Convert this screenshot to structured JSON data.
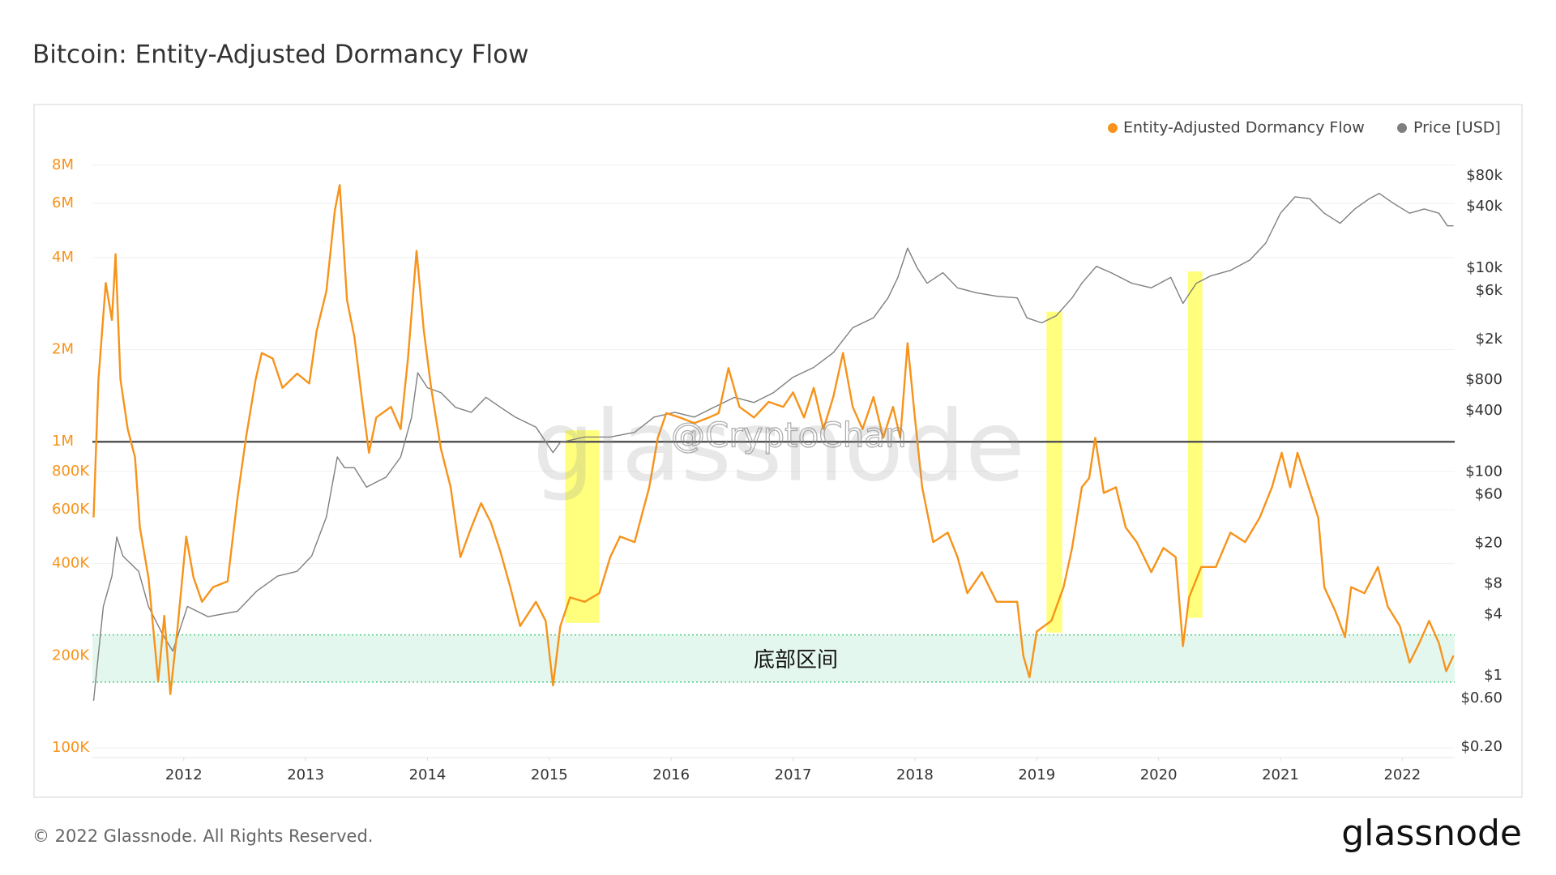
{
  "chart_data": {
    "type": "line",
    "title": "Bitcoin: Entity-Adjusted Dormancy Flow",
    "footer": "© 2022 Glassnode. All Rights Reserved.",
    "logo": "glassnode",
    "watermarks": [
      "glassnode",
      "@CryptoChan"
    ],
    "xlim": [
      2011.25,
      2022.43
    ],
    "xticks": [
      2012,
      2013,
      2014,
      2015,
      2016,
      2017,
      2018,
      2019,
      2020,
      2021,
      2022
    ],
    "log_scale": true,
    "grid": true,
    "legend": "top-right",
    "ylim": [
      93000,
      8400000
    ],
    "yticks": [
      {
        "value": 100000,
        "label": "100K"
      },
      {
        "value": 200000,
        "label": "200K"
      },
      {
        "value": 400000,
        "label": "400K"
      },
      {
        "value": 600000,
        "label": "600K"
      },
      {
        "value": 800000,
        "label": "800K"
      },
      {
        "value": 1000000,
        "label": "1M"
      },
      {
        "value": 2000000,
        "label": "2M"
      },
      {
        "value": 4000000,
        "label": "4M"
      },
      {
        "value": 6000000,
        "label": "6M"
      },
      {
        "value": 8000000,
        "label": "8M"
      }
    ],
    "y2lim": [
      0.158,
      118000
    ],
    "y2ticks": [
      {
        "value": 0.2,
        "label": "$0.20"
      },
      {
        "value": 0.6,
        "label": "$0.60"
      },
      {
        "value": 1,
        "label": "$1"
      },
      {
        "value": 4,
        "label": "$4"
      },
      {
        "value": 8,
        "label": "$8"
      },
      {
        "value": 20,
        "label": "$20"
      },
      {
        "value": 60,
        "label": "$60"
      },
      {
        "value": 100,
        "label": "$100"
      },
      {
        "value": 400,
        "label": "$400"
      },
      {
        "value": 800,
        "label": "$800"
      },
      {
        "value": 2000,
        "label": "$2k"
      },
      {
        "value": 6000,
        "label": "$6k"
      },
      {
        "value": 10000,
        "label": "$10k"
      },
      {
        "value": 40000,
        "label": "$40k"
      },
      {
        "value": 80000,
        "label": "$80k"
      }
    ],
    "reference_line": {
      "value": 1000000,
      "color": "#555555"
    },
    "bottom_zone": {
      "label": "底部区间",
      "ylim": [
        164000,
        234000
      ],
      "color": "#e4f7ee",
      "border_color": "#59c98a"
    },
    "highlights": [
      {
        "x": [
          2015.13,
          2015.41
        ],
        "y": [
          256000,
          1090000
        ]
      },
      {
        "x": [
          2019.08,
          2019.21
        ],
        "y": [
          238000,
          2660000
        ]
      },
      {
        "x": [
          2020.24,
          2020.36
        ],
        "y": [
          266000,
          3600000
        ]
      }
    ],
    "highlight_color": "#ffff66",
    "series": [
      {
        "name": "Entity-Adjusted Dormancy Flow",
        "color": "#f7931a",
        "axis": "y",
        "x": [
          2011.26,
          2011.3,
          2011.36,
          2011.41,
          2011.44,
          2011.48,
          2011.54,
          2011.6,
          2011.64,
          2011.71,
          2011.79,
          2011.84,
          2011.89,
          2011.95,
          2012.02,
          2012.08,
          2012.15,
          2012.24,
          2012.36,
          2012.44,
          2012.51,
          2012.59,
          2012.64,
          2012.73,
          2012.81,
          2012.93,
          2013.03,
          2013.09,
          2013.17,
          2013.24,
          2013.28,
          2013.34,
          2013.4,
          2013.46,
          2013.52,
          2013.58,
          2013.7,
          2013.78,
          2013.84,
          2013.91,
          2013.97,
          2014.03,
          2014.11,
          2014.19,
          2014.27,
          2014.36,
          2014.44,
          2014.52,
          2014.6,
          2014.68,
          2014.76,
          2014.89,
          2014.97,
          2015.03,
          2015.09,
          2015.17,
          2015.29,
          2015.41,
          2015.5,
          2015.58,
          2015.7,
          2015.82,
          2015.89,
          2015.96,
          2016.07,
          2016.19,
          2016.31,
          2016.39,
          2016.47,
          2016.56,
          2016.68,
          2016.8,
          2016.92,
          2017.0,
          2017.09,
          2017.17,
          2017.25,
          2017.33,
          2017.41,
          2017.49,
          2017.57,
          2017.66,
          2017.74,
          2017.82,
          2017.88,
          2017.94,
          2018.0,
          2018.06,
          2018.15,
          2018.27,
          2018.35,
          2018.43,
          2018.55,
          2018.67,
          2018.84,
          2018.89,
          2018.94,
          2019.0,
          2019.12,
          2019.22,
          2019.29,
          2019.37,
          2019.43,
          2019.48,
          2019.55,
          2019.65,
          2019.73,
          2019.82,
          2019.94,
          2020.04,
          2020.14,
          2020.2,
          2020.25,
          2020.35,
          2020.47,
          2020.59,
          2020.71,
          2020.83,
          2020.93,
          2021.01,
          2021.08,
          2021.14,
          2021.23,
          2021.31,
          2021.36,
          2021.45,
          2021.53,
          2021.58,
          2021.69,
          2021.8,
          2021.88,
          2021.98,
          2022.06,
          2022.14,
          2022.22,
          2022.3,
          2022.36,
          2022.42
        ],
        "values": [
          566000,
          1600000,
          3300000,
          2500000,
          4100000,
          1600000,
          1100000,
          890000,
          525000,
          360000,
          165000,
          270000,
          150000,
          250000,
          490000,
          360000,
          300000,
          335000,
          350000,
          650000,
          1030000,
          1600000,
          1950000,
          1870000,
          1500000,
          1670000,
          1550000,
          2300000,
          3100000,
          5700000,
          6900000,
          2900000,
          2200000,
          1400000,
          920000,
          1200000,
          1300000,
          1100000,
          1870000,
          4200000,
          2300000,
          1500000,
          950000,
          710000,
          420000,
          525000,
          630000,
          545000,
          435000,
          335000,
          250000,
          300000,
          260000,
          160000,
          250000,
          310000,
          300000,
          320000,
          420000,
          490000,
          470000,
          710000,
          1030000,
          1240000,
          1200000,
          1150000,
          1200000,
          1240000,
          1740000,
          1300000,
          1200000,
          1350000,
          1300000,
          1450000,
          1200000,
          1500000,
          1100000,
          1400000,
          1950000,
          1300000,
          1100000,
          1400000,
          1030000,
          1300000,
          1030000,
          2100000,
          1200000,
          710000,
          470000,
          505000,
          420000,
          320000,
          375000,
          300000,
          300000,
          200000,
          170000,
          240000,
          260000,
          335000,
          450000,
          710000,
          760000,
          1030000,
          680000,
          710000,
          525000,
          470000,
          375000,
          450000,
          420000,
          215000,
          310000,
          390000,
          390000,
          505000,
          470000,
          565000,
          710000,
          920000,
          710000,
          920000,
          710000,
          565000,
          335000,
          280000,
          230000,
          335000,
          320000,
          390000,
          290000,
          250000,
          190000,
          220000,
          260000,
          220000,
          178000,
          200000
        ]
      },
      {
        "name": "Price [USD]",
        "color": "#7f7f7f",
        "axis": "y2",
        "x": [
          2011.26,
          2011.34,
          2011.41,
          2011.45,
          2011.5,
          2011.63,
          2011.71,
          2011.83,
          2011.91,
          2012.03,
          2012.2,
          2012.44,
          2012.6,
          2012.77,
          2012.93,
          2013.05,
          2013.17,
          2013.26,
          2013.32,
          2013.4,
          2013.5,
          2013.66,
          2013.78,
          2013.87,
          2013.92,
          2014.0,
          2014.11,
          2014.23,
          2014.36,
          2014.48,
          2014.6,
          2014.72,
          2014.89,
          2015.03,
          2015.09,
          2015.29,
          2015.5,
          2015.7,
          2015.86,
          2016.03,
          2016.19,
          2016.35,
          2016.52,
          2016.68,
          2016.84,
          2017.0,
          2017.17,
          2017.33,
          2017.49,
          2017.66,
          2017.78,
          2017.86,
          2017.94,
          2018.02,
          2018.1,
          2018.23,
          2018.35,
          2018.51,
          2018.67,
          2018.84,
          2018.92,
          2019.04,
          2019.16,
          2019.29,
          2019.37,
          2019.49,
          2019.61,
          2019.78,
          2019.94,
          2020.1,
          2020.2,
          2020.31,
          2020.43,
          2020.59,
          2020.75,
          2020.88,
          2021.0,
          2021.12,
          2021.24,
          2021.36,
          2021.49,
          2021.61,
          2021.73,
          2021.81,
          2021.93,
          2022.06,
          2022.18,
          2022.3,
          2022.37,
          2022.42
        ],
        "values": [
          0.57,
          4.8,
          9.5,
          23,
          15,
          10.6,
          4.8,
          2.5,
          1.75,
          4.8,
          3.8,
          4.3,
          6.8,
          9.5,
          10.6,
          15,
          36,
          140,
          110,
          110,
          71,
          89,
          140,
          345,
          940,
          670,
          600,
          430,
          385,
          540,
          430,
          345,
          275,
          155,
          195,
          220,
          220,
          245,
          345,
          385,
          345,
          430,
          540,
          480,
          600,
          850,
          1060,
          1480,
          2600,
          3250,
          5100,
          8100,
          15700,
          10000,
          7100,
          9000,
          6400,
          5700,
          5300,
          5100,
          3250,
          2900,
          3400,
          5100,
          7100,
          10400,
          9000,
          7100,
          6400,
          8100,
          4500,
          7100,
          8400,
          9500,
          12000,
          17600,
          34500,
          50000,
          48000,
          34500,
          27500,
          38000,
          48000,
          54000,
          43000,
          34500,
          38000,
          34500,
          26000,
          26000
        ]
      }
    ]
  }
}
